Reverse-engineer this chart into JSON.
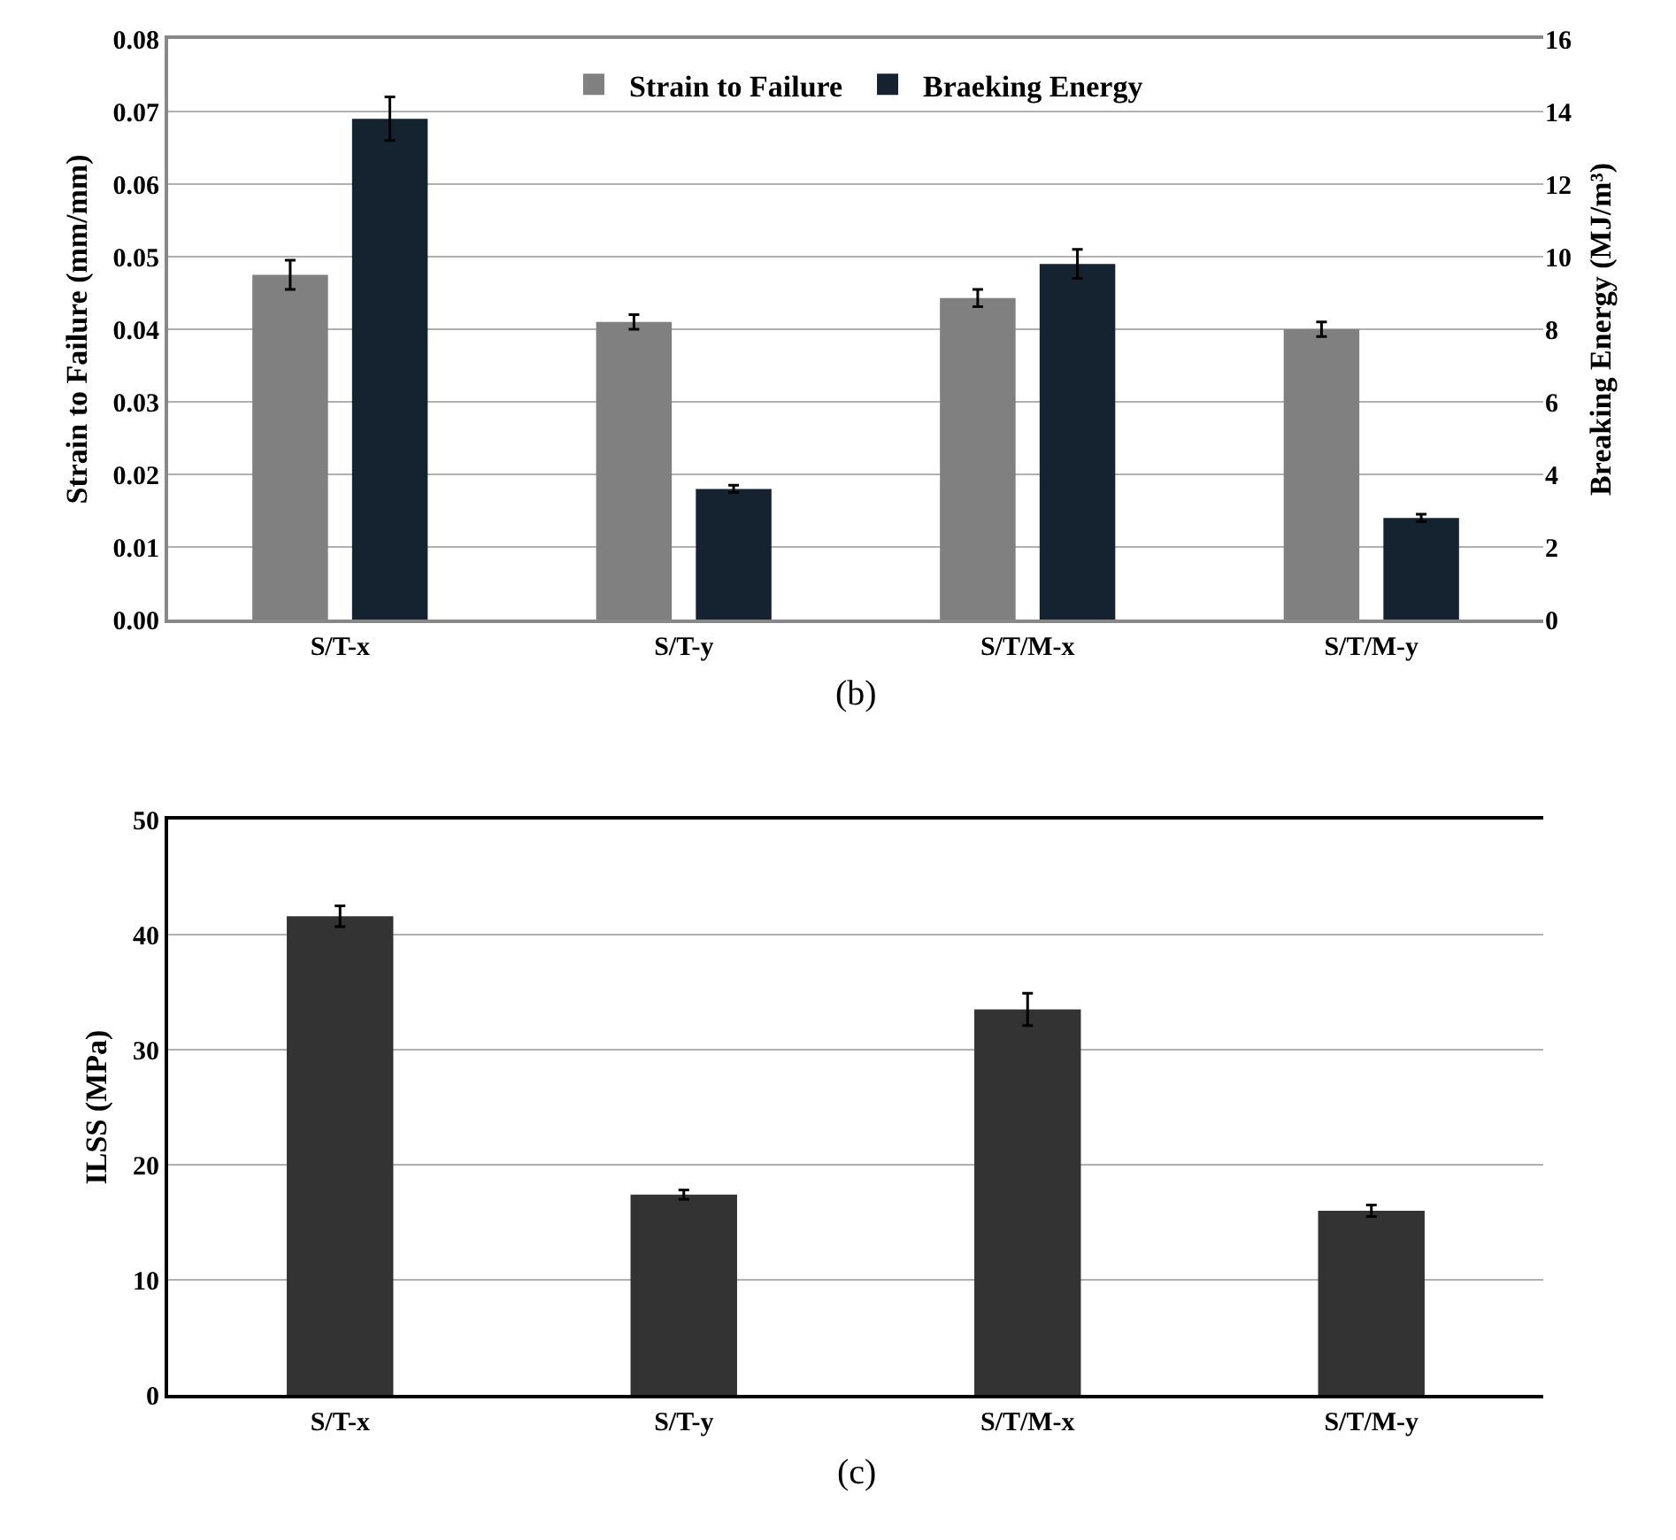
{
  "chart_data": [
    {
      "type": "bar",
      "categories": [
        "S/T-x",
        "S/T-y",
        "S/T/M-x",
        "S/T/M-y"
      ],
      "ylabel": "Strain to Failure (mm/mm)",
      "y2label": "Breaking Energy (MJ/m³)",
      "series": [
        {
          "name": "Strain to Failure",
          "color": "#808080",
          "values": [
            0.0475,
            0.041,
            0.0443,
            0.04
          ],
          "errors": [
            0.002,
            0.001,
            0.0012,
            0.001
          ]
        },
        {
          "name": "Braeking Energy",
          "color": "#14232f",
          "axis": "y2",
          "values": [
            13.8,
            3.6,
            9.8,
            2.8
          ],
          "errors": [
            0.6,
            0.1,
            0.4,
            0.1
          ]
        }
      ],
      "ylim": [
        0,
        0.08
      ],
      "yticks": [
        {
          "value": 0,
          "label": "0.00"
        },
        {
          "value": 0.01,
          "label": "0.01"
        },
        {
          "value": 0.02,
          "label": "0.02"
        },
        {
          "value": 0.03,
          "label": "0.03"
        },
        {
          "value": 0.04,
          "label": "0.04"
        },
        {
          "value": 0.05,
          "label": "0.05"
        },
        {
          "value": 0.06,
          "label": "0.06"
        },
        {
          "value": 0.07,
          "label": "0.07"
        },
        {
          "value": 0.08,
          "label": "0.08"
        }
      ],
      "y2lim": [
        0,
        16
      ],
      "y2ticks": [
        0,
        2,
        4,
        6,
        8,
        10,
        12,
        14,
        16
      ],
      "grid": "y",
      "legend": "top",
      "annotations": [
        "(b)"
      ]
    },
    {
      "type": "bar",
      "categories": [
        "S/T-x",
        "S/T-y",
        "S/T/M-x",
        "S/T/M-y"
      ],
      "ylabel": "ILSS (MPa)",
      "series": [
        {
          "color": "#333333",
          "values": [
            41.6,
            17.4,
            33.5,
            16.0
          ],
          "errors": [
            0.9,
            0.4,
            1.4,
            0.5
          ]
        }
      ],
      "ylim": [
        0,
        50
      ],
      "yticks": [
        0,
        10,
        20,
        30,
        40,
        50
      ],
      "grid": "y",
      "legend": false,
      "annotations": [
        "(c)"
      ]
    }
  ]
}
